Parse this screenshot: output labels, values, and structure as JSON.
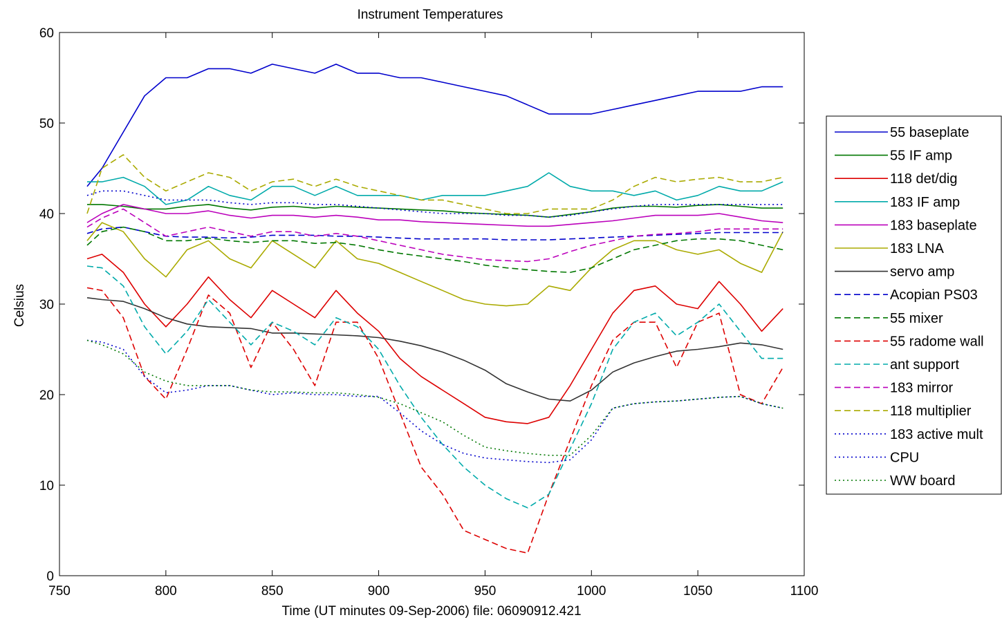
{
  "chart_data": {
    "type": "line",
    "title": "Instrument Temperatures",
    "xlabel": "Time (UT minutes 09-Sep-2006) file: 06090912.421",
    "ylabel": "Celsius",
    "xlim": [
      750,
      1100
    ],
    "ylim": [
      0,
      60
    ],
    "xticks": [
      750,
      800,
      850,
      900,
      950,
      1000,
      1050,
      1100
    ],
    "yticks": [
      0,
      10,
      20,
      30,
      40,
      50,
      60
    ],
    "grid": false,
    "legend_position": "outside-right",
    "x": [
      763,
      770,
      780,
      790,
      800,
      810,
      820,
      830,
      840,
      850,
      860,
      870,
      880,
      890,
      900,
      910,
      920,
      930,
      940,
      950,
      960,
      970,
      980,
      990,
      1000,
      1010,
      1020,
      1030,
      1040,
      1050,
      1060,
      1070,
      1080,
      1090
    ],
    "series": [
      {
        "name": "55 baseplate",
        "color": "#0000cc",
        "style": "solid",
        "values": [
          43,
          45,
          49,
          53,
          55,
          55,
          56,
          56,
          55.5,
          56.5,
          56,
          55.5,
          56.5,
          55.5,
          55.5,
          55,
          55,
          54.5,
          54,
          53.5,
          53,
          52,
          51,
          51,
          51,
          51.5,
          52,
          52.5,
          53,
          53.5,
          53.5,
          53.5,
          54,
          54
        ]
      },
      {
        "name": "55 IF amp",
        "color": "#007700",
        "style": "solid",
        "values": [
          41,
          41,
          40.8,
          40.5,
          40.5,
          40.8,
          41,
          40.6,
          40.4,
          40.7,
          40.8,
          40.6,
          40.8,
          40.7,
          40.6,
          40.5,
          40.4,
          40.3,
          40.1,
          40,
          39.9,
          39.8,
          39.6,
          39.9,
          40.2,
          40.6,
          40.8,
          40.8,
          40.7,
          40.9,
          41,
          40.8,
          40.6,
          40.6
        ]
      },
      {
        "name": "118 det/dig",
        "color": "#dd0000",
        "style": "solid",
        "values": [
          35,
          35.5,
          33.5,
          30,
          27.5,
          30,
          33,
          30.5,
          28.5,
          31.5,
          30,
          28.5,
          31.5,
          29,
          27,
          24,
          22,
          20.5,
          19,
          17.5,
          17,
          16.8,
          17.5,
          21,
          25,
          29,
          31.5,
          32,
          30,
          29.5,
          32.5,
          30,
          27,
          29.5
        ]
      },
      {
        "name": "183 IF amp",
        "color": "#00aaaa",
        "style": "solid",
        "values": [
          43.5,
          43.5,
          44,
          43,
          41,
          41.5,
          43,
          42,
          41.5,
          43,
          43,
          42,
          43,
          42,
          42,
          42,
          41.5,
          42,
          42,
          42,
          42.5,
          43,
          44.5,
          43,
          42.5,
          42.5,
          42,
          42.5,
          41.5,
          42,
          43,
          42.5,
          42.5,
          43.5
        ]
      },
      {
        "name": "183 baseplate",
        "color": "#bb00bb",
        "style": "solid",
        "values": [
          39,
          40,
          41,
          40.5,
          40,
          40,
          40.3,
          39.8,
          39.5,
          39.8,
          39.8,
          39.6,
          39.8,
          39.6,
          39.3,
          39.3,
          39.1,
          39,
          38.9,
          38.8,
          38.7,
          38.6,
          38.6,
          38.8,
          39,
          39.2,
          39.5,
          39.8,
          39.8,
          39.8,
          40,
          39.6,
          39.2,
          39
        ]
      },
      {
        "name": "183 LNA",
        "color": "#aaaa00",
        "style": "solid",
        "values": [
          37,
          39,
          38,
          35,
          33,
          36,
          37,
          35,
          34,
          37,
          35.5,
          34,
          37,
          35,
          34.5,
          33.5,
          32.5,
          31.5,
          30.5,
          30,
          29.8,
          30,
          32,
          31.5,
          34,
          36,
          37,
          37,
          36,
          35.5,
          36,
          34.5,
          33.5,
          38
        ]
      },
      {
        "name": "servo amp",
        "color": "#333333",
        "style": "solid",
        "values": [
          30.7,
          30.5,
          30.3,
          29.5,
          28.5,
          27.8,
          27.5,
          27.4,
          27.3,
          26.8,
          26.8,
          26.7,
          26.6,
          26.5,
          26.3,
          25.9,
          25.4,
          24.7,
          23.8,
          22.7,
          21.2,
          20.3,
          19.5,
          19.3,
          20.5,
          22.5,
          23.5,
          24.2,
          24.8,
          25,
          25.3,
          25.7,
          25.5,
          25
        ]
      },
      {
        "name": "Acopian PS03",
        "color": "#0000cc",
        "style": "dashed",
        "values": [
          37.8,
          38.3,
          38.5,
          38,
          37.5,
          37.4,
          37.4,
          37.3,
          37.4,
          37.6,
          37.6,
          37.6,
          37.5,
          37.5,
          37.4,
          37.3,
          37.2,
          37.2,
          37.2,
          37.2,
          37.1,
          37.1,
          37.1,
          37.2,
          37.3,
          37.4,
          37.5,
          37.6,
          37.7,
          37.8,
          37.9,
          37.9,
          37.9,
          37.9
        ]
      },
      {
        "name": "55 mixer",
        "color": "#007700",
        "style": "dashed",
        "values": [
          36.5,
          38,
          38.5,
          38,
          37,
          37,
          37.3,
          37,
          36.8,
          37,
          37,
          36.7,
          36.8,
          36.5,
          36,
          35.6,
          35.3,
          35,
          34.7,
          34.3,
          34,
          33.8,
          33.6,
          33.5,
          34,
          35,
          36,
          36.5,
          37,
          37.2,
          37.2,
          37,
          36.5,
          36
        ]
      },
      {
        "name": "55 radome wall",
        "color": "#dd0000",
        "style": "dashed",
        "values": [
          31.8,
          31.5,
          28.5,
          22,
          19.5,
          25,
          31,
          29,
          23,
          28,
          25,
          21,
          28,
          28,
          24,
          18,
          12,
          9,
          5,
          4,
          3,
          2.5,
          9,
          15,
          21,
          26,
          28,
          28,
          23,
          28,
          29,
          20,
          19,
          23
        ]
      },
      {
        "name": "ant support",
        "color": "#00aaaa",
        "style": "dashed",
        "values": [
          34.2,
          34,
          32,
          27.5,
          24.5,
          27,
          30.5,
          28,
          25.5,
          28,
          27,
          25.5,
          28.5,
          27.5,
          25,
          21,
          17.5,
          14.5,
          12,
          10,
          8.5,
          7.5,
          9,
          14,
          19,
          25,
          28,
          29,
          26.5,
          28,
          30,
          27,
          24,
          24
        ]
      },
      {
        "name": "183 mirror",
        "color": "#bb00bb",
        "style": "dashed",
        "values": [
          38.5,
          39.5,
          40.5,
          39,
          37.5,
          38,
          38.5,
          38,
          37.5,
          38,
          38,
          37.5,
          37.8,
          37.5,
          37,
          36.5,
          36,
          35.5,
          35.2,
          34.9,
          34.8,
          34.7,
          35,
          35.8,
          36.5,
          37,
          37.5,
          37.7,
          37.8,
          38,
          38.3,
          38.3,
          38.3,
          38.3
        ]
      },
      {
        "name": "118 multiplier",
        "color": "#aaaa00",
        "style": "dashed",
        "values": [
          40,
          45,
          46.5,
          44,
          42.5,
          43.5,
          44.5,
          44,
          42.5,
          43.5,
          43.8,
          43,
          43.8,
          43,
          42.5,
          42,
          41.5,
          41.5,
          41,
          40.5,
          40,
          40,
          40.5,
          40.5,
          40.5,
          41.5,
          43,
          44,
          43.5,
          43.8,
          44,
          43.5,
          43.5,
          44
        ]
      },
      {
        "name": "183 active mult",
        "color": "#0000cc",
        "style": "dotted",
        "values": [
          26,
          25.8,
          25,
          22,
          20.2,
          20.5,
          21,
          21,
          20.5,
          20,
          20.2,
          20,
          20,
          19.8,
          19.8,
          18,
          16,
          14.5,
          13.5,
          13,
          12.8,
          12.6,
          12.5,
          12.8,
          15,
          18.5,
          19,
          19.2,
          19.3,
          19.5,
          19.7,
          19.8,
          19,
          18.5
        ]
      },
      {
        "name": "CPU",
        "color": "#0000cc",
        "style": "dotted",
        "values": [
          42,
          42.5,
          42.5,
          42,
          41.5,
          41.5,
          41.5,
          41.2,
          41,
          41.2,
          41.2,
          41,
          41,
          40.8,
          40.6,
          40.4,
          40.2,
          40,
          40,
          40,
          39.8,
          39.8,
          39.6,
          39.8,
          40.2,
          40.5,
          40.8,
          41,
          41,
          41,
          41,
          41,
          41,
          41
        ]
      },
      {
        "name": "WW board",
        "color": "#007700",
        "style": "dotted",
        "values": [
          26,
          25.5,
          24.5,
          22.5,
          21.5,
          21,
          21,
          21,
          20.5,
          20.3,
          20.3,
          20.2,
          20.2,
          20,
          19.7,
          19,
          18,
          17,
          15.5,
          14.2,
          13.8,
          13.5,
          13.3,
          13.3,
          15.5,
          18.5,
          19,
          19.2,
          19.3,
          19.5,
          19.7,
          19.8,
          19,
          18.5
        ]
      }
    ]
  }
}
